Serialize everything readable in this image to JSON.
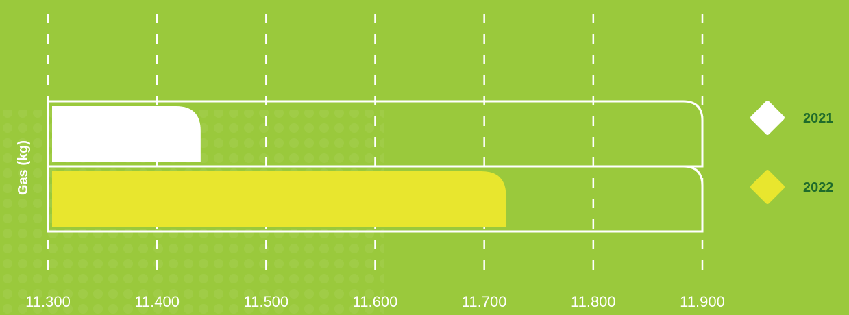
{
  "chart_data": {
    "type": "bar",
    "orientation": "horizontal",
    "ylabel": "Gas (kg)",
    "xlim": [
      11300,
      11900
    ],
    "x_ticks": [
      "11.300",
      "11.400",
      "11.500",
      "11.600",
      "11.700",
      "11.800",
      "11.900"
    ],
    "x_tick_values": [
      11300,
      11400,
      11500,
      11600,
      11700,
      11800,
      11900
    ],
    "grid": "vertical dashed",
    "legend_position": "right",
    "series": [
      {
        "name": "2021",
        "value": 11440,
        "color": "#ffffff"
      },
      {
        "name": "2022",
        "value": 11720,
        "color": "#e8e62e"
      }
    ],
    "colors": {
      "background": "#9ac93c",
      "grid": "#ffffff",
      "legend_text": "#1f6b2b"
    }
  }
}
